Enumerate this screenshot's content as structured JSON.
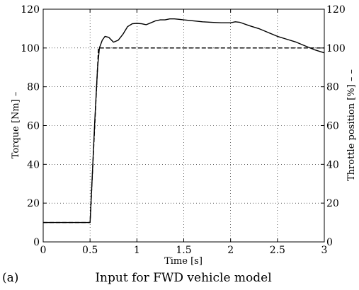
{
  "chart_data": {
    "type": "line",
    "caption_label": "(a)",
    "caption": "Input for FWD vehicle model",
    "xlabel": "Time [s]",
    "ylabel_left": "Torque [Nm] –",
    "ylabel_right": "Throttle position [%] – –",
    "xlim": [
      0,
      3
    ],
    "ylim_left": [
      0,
      120
    ],
    "ylim_right": [
      0,
      120
    ],
    "x_ticks": [
      "0",
      "0.5",
      "1",
      "1.5",
      "2",
      "2.5",
      "3"
    ],
    "y_ticks_left": [
      "0",
      "20",
      "40",
      "60",
      "80",
      "100",
      "120"
    ],
    "y_ticks_right": [
      "0",
      "20",
      "40",
      "60",
      "80",
      "100",
      "120"
    ],
    "grid": true,
    "series": [
      {
        "style": "solid",
        "axis": "left",
        "x": [
          0,
          0.5,
          0.52,
          0.55,
          0.58,
          0.6,
          0.63,
          0.66,
          0.7,
          0.75,
          0.8,
          0.85,
          0.9,
          0.95,
          1.0,
          1.05,
          1.1,
          1.15,
          1.2,
          1.25,
          1.3,
          1.35,
          1.4,
          1.45,
          1.5,
          1.6,
          1.7,
          1.8,
          1.9,
          2.0,
          2.05,
          2.1,
          2.2,
          2.3,
          2.4,
          2.5,
          2.6,
          2.7,
          2.8,
          2.9,
          3.0
        ],
        "y": [
          10,
          10,
          30,
          62,
          90,
          100,
          104,
          106,
          105.5,
          103,
          104,
          107,
          111,
          112.5,
          112.7,
          112.5,
          112,
          113,
          114,
          114.5,
          114.5,
          115,
          115,
          114.8,
          114.5,
          114,
          113.5,
          113.2,
          113,
          113,
          113.5,
          113.2,
          111.5,
          110,
          108,
          106,
          104.5,
          103,
          101,
          99,
          97.5
        ]
      },
      {
        "style": "dashed",
        "axis": "right",
        "x": [
          0,
          0.5,
          0.59,
          3.0
        ],
        "y": [
          10,
          10,
          100,
          100
        ]
      }
    ]
  }
}
